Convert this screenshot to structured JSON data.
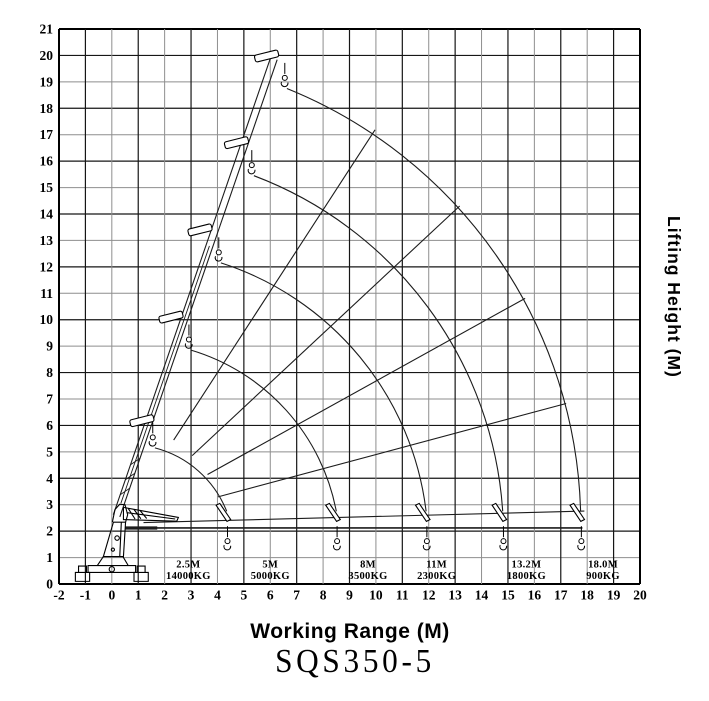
{
  "colors": {
    "ink": "#000000",
    "grid_major": "#161616",
    "grid_minor": "#8e8e8e",
    "background": "#ffffff"
  },
  "chart_data": {
    "type": "line",
    "title": "SQS350-5",
    "xlabel": "Working Range (M)",
    "ylabel": "Lifting Height (M)",
    "xlim": [
      -2,
      20
    ],
    "ylim": [
      0,
      21
    ],
    "grid": "on",
    "x_ticks": [
      -2,
      -1,
      0,
      1,
      2,
      3,
      4,
      5,
      6,
      7,
      8,
      9,
      10,
      11,
      12,
      13,
      14,
      15,
      16,
      17,
      18,
      19,
      20
    ],
    "y_ticks": [
      0,
      1,
      2,
      3,
      4,
      5,
      6,
      7,
      8,
      9,
      10,
      11,
      12,
      13,
      14,
      15,
      16,
      17,
      18,
      19,
      20,
      21
    ],
    "pivot": [
      0.3,
      2.3
    ],
    "boom": {
      "base": [
        0.18,
        2.58
      ],
      "angle_deg": 71,
      "length": 18.3,
      "half_width": 0.13
    },
    "heads": [
      [
        1.42,
        6.08
      ],
      [
        2.52,
        10.0
      ],
      [
        3.62,
        13.3
      ],
      [
        5.0,
        16.6
      ],
      [
        6.14,
        19.88
      ]
    ],
    "stations": [
      {
        "length_label": "2.5M",
        "capacity_label": "14000KG",
        "label_x": 2.9
      },
      {
        "length_label": "5M",
        "capacity_label": "5000KG",
        "label_x": 6.0,
        "hook": [
          1.55,
          5.55
        ],
        "ground_x": 4.35,
        "arc_r": 4.0
      },
      {
        "length_label": "8M",
        "capacity_label": "3500KG",
        "label_x": 9.7,
        "hook": [
          2.92,
          9.25
        ],
        "ground_x": 8.5,
        "arc_r": 7.9
      },
      {
        "length_label": "11M",
        "capacity_label": "2300KG",
        "label_x": 12.3,
        "hook": [
          4.05,
          12.55
        ],
        "ground_x": 11.9,
        "arc_r": 11.3
      },
      {
        "length_label": "13.2M",
        "capacity_label": "1800KG",
        "label_x": 15.7,
        "hook": [
          5.3,
          15.85
        ],
        "ground_x": 14.8,
        "arc_r": 14.6
      },
      {
        "length_label": "18.0M",
        "capacity_label": "900KG",
        "label_x": 18.6,
        "hook": [
          6.55,
          19.15
        ],
        "ground_x": 17.75,
        "arc_r": 17.8
      }
    ],
    "fan_lines": [
      [
        57,
        3.75,
        17.75
      ],
      [
        43,
        3.75,
        17.6
      ],
      [
        29,
        3.8,
        17.55
      ],
      [
        15,
        3.85,
        17.5
      ],
      [
        1.5,
        0.9,
        17.6
      ]
    ],
    "horizontal_reach_line": {
      "y": 2.12,
      "x_start": 0.5,
      "x_end": 17.82,
      "bold_x_end": 1.72
    }
  }
}
